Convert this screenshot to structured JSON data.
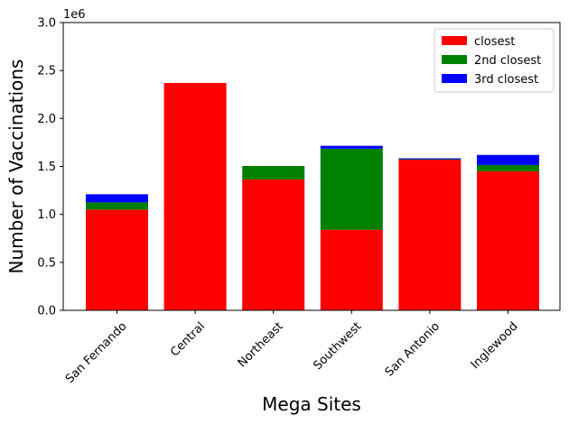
{
  "chart_data": {
    "type": "bar",
    "stacked": true,
    "categories": [
      "San Fernando",
      "Central",
      "Northeast",
      "Southwest",
      "San Antonio",
      "Inglewood"
    ],
    "series": [
      {
        "name": "closest",
        "color": "#ff0000",
        "values": [
          1050000,
          2370000,
          1365000,
          840000,
          1570000,
          1450000
        ]
      },
      {
        "name": "2nd closest",
        "color": "#008000",
        "values": [
          75000,
          0,
          140000,
          845000,
          5000,
          65000
        ]
      },
      {
        "name": "3rd closest",
        "color": "#0000ff",
        "values": [
          85000,
          0,
          0,
          30000,
          10000,
          105000
        ]
      }
    ],
    "xlabel": "Mega Sites",
    "ylabel": "Number of Vaccinations",
    "ylim": [
      0,
      3000000
    ],
    "yticks": [
      0,
      500000,
      1000000,
      1500000,
      2000000,
      2500000,
      3000000
    ],
    "ytick_labels": [
      "0.0",
      "0.5",
      "1.0",
      "1.5",
      "2.0",
      "2.5",
      "3.0"
    ],
    "y_offset_label": "1e6",
    "legend_position": "top-right",
    "grid": false
  }
}
